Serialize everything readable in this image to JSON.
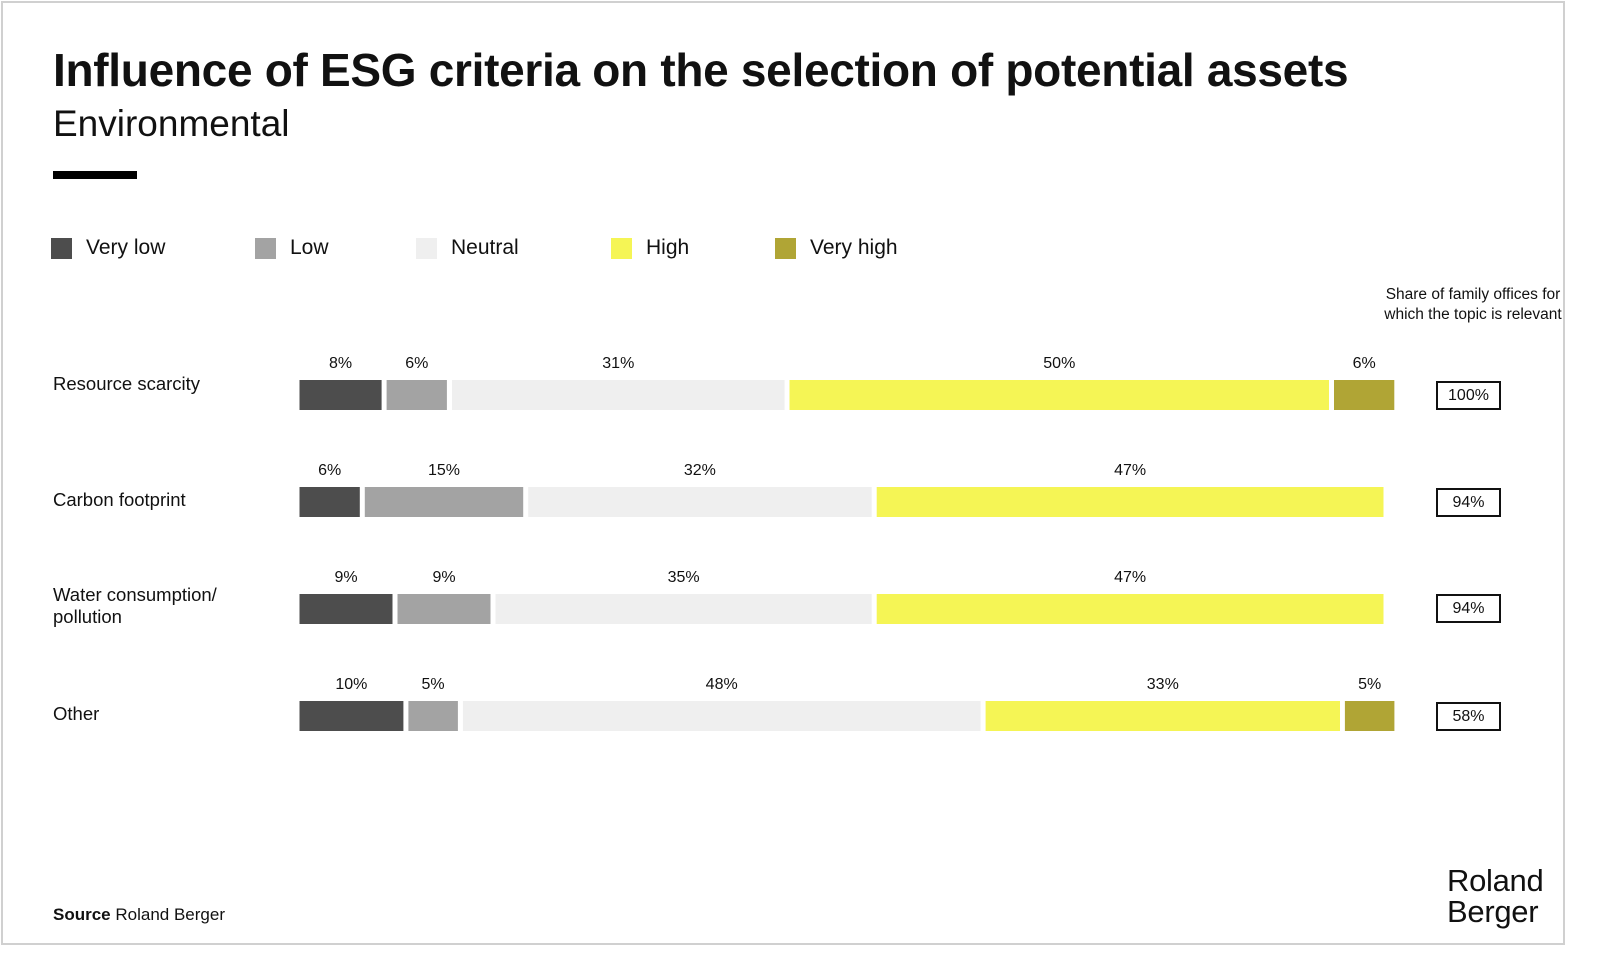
{
  "title": "Influence of ESG criteria on the selection of potential assets",
  "subtitle": "Environmental",
  "legend": [
    {
      "label": "Very low",
      "color": "#4d4d4d"
    },
    {
      "label": "Low",
      "color": "#a3a3a3"
    },
    {
      "label": "Neutral",
      "color": "#efefef"
    },
    {
      "label": "High",
      "color": "#f5f555"
    },
    {
      "label": "Very high",
      "color": "#b0a535"
    }
  ],
  "share_header": "Share of family offices for which the topic is relevant",
  "chart_data": {
    "type": "bar",
    "orientation": "horizontal",
    "stacked": true,
    "categories": [
      "Resource scarcity",
      "Carbon footprint",
      "Water consumption/\npollution",
      "Other"
    ],
    "series": [
      {
        "name": "Very low",
        "color": "#4d4d4d",
        "values": [
          8,
          6,
          9,
          10
        ],
        "labels": [
          "8%",
          "6%",
          "9%",
          "10%"
        ]
      },
      {
        "name": "Low",
        "color": "#a3a3a3",
        "values": [
          6,
          15,
          9,
          5
        ],
        "labels": [
          "6%",
          "15%",
          "9%",
          "5%"
        ]
      },
      {
        "name": "Neutral",
        "color": "#efefef",
        "values": [
          31,
          32,
          35,
          48
        ],
        "labels": [
          "31%",
          "32%",
          "35%",
          "48%"
        ]
      },
      {
        "name": "High",
        "color": "#f5f555",
        "values": [
          50,
          47,
          47,
          33
        ],
        "labels": [
          "50%",
          "47%",
          "47%",
          "33%"
        ]
      },
      {
        "name": "Very high",
        "color": "#b0a535",
        "values": [
          6,
          0,
          0,
          5
        ],
        "labels": [
          "6%",
          "",
          "",
          "5%"
        ]
      }
    ],
    "share_relevant": [
      "100%",
      "94%",
      "94%",
      "58%"
    ],
    "xlim": [
      0,
      100
    ],
    "legend_position": "top",
    "grid": false
  },
  "source": {
    "label": "Source",
    "text": "Roland Berger"
  },
  "logo": "Roland\nBerger"
}
